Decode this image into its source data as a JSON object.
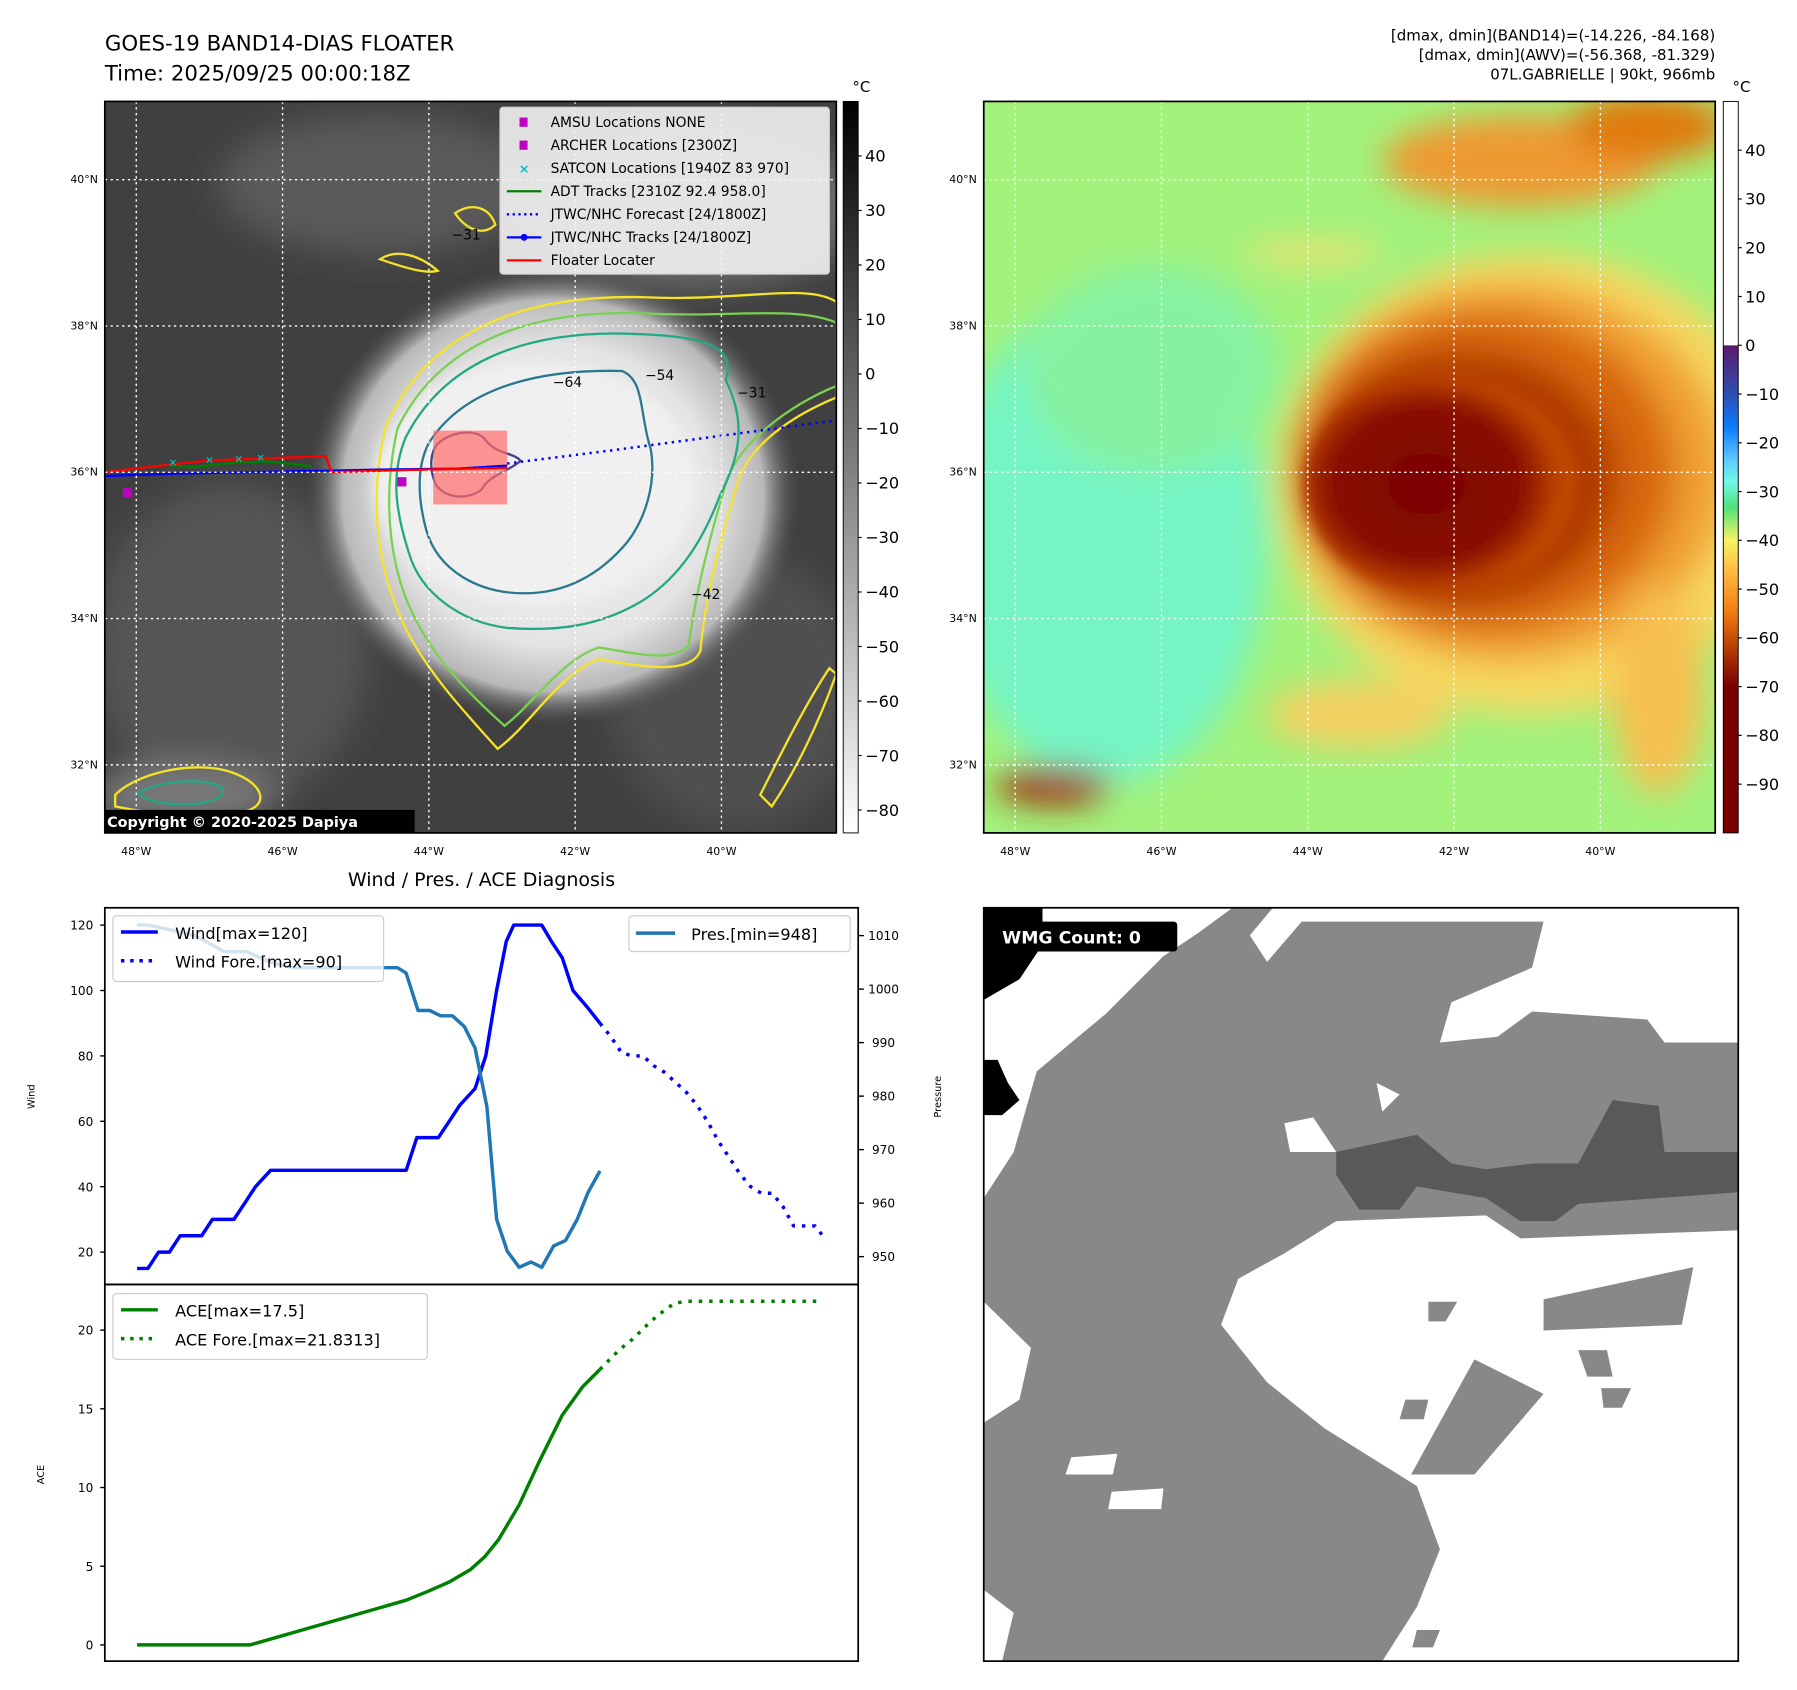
{
  "header": {
    "title": "GOES-19 BAND14-DIAS FLOATER",
    "time": "Time: 2025/09/25 00:00:18Z",
    "stats": [
      "[dmax, dmin](BAND14)=(-14.226, -84.168)",
      "[dmax, dmin](AWV)=(-56.368, -81.329)",
      "07L.GABRIELLE | 90kt, 966mb"
    ]
  },
  "maps": {
    "lat_ticks": [
      {
        "v": 40,
        "label": "40°N"
      },
      {
        "v": 38,
        "label": "38°N"
      },
      {
        "v": 36,
        "label": "36°N"
      },
      {
        "v": 34,
        "label": "34°N"
      },
      {
        "v": 32,
        "label": "32°N"
      }
    ],
    "lon_ticks": [
      {
        "v": -48,
        "label": "48°W"
      },
      {
        "v": -46,
        "label": "46°W"
      },
      {
        "v": -44,
        "label": "44°W"
      },
      {
        "v": -42,
        "label": "42°W"
      },
      {
        "v": -40,
        "label": "40°W"
      }
    ],
    "lon_range": [
      -48.43,
      -38.43
    ],
    "lat_range": [
      31.07,
      41.07
    ]
  },
  "map_left": {
    "legend": [
      {
        "label": "AMSU Locations NONE",
        "symbol": "square",
        "color": "#c000c0"
      },
      {
        "label": "ARCHER Locations [2300Z]",
        "symbol": "square",
        "color": "#c000c0"
      },
      {
        "label": "SATCON Locations [1940Z 83 970]",
        "symbol": "x",
        "color": "#00bfbf"
      },
      {
        "label": "ADT Tracks [2310Z 92.4 958.0]",
        "symbol": "line",
        "color": "#008000"
      },
      {
        "label": "JTWC/NHC Forecast [24/1800Z]",
        "symbol": "dotted",
        "color": "#0000ff"
      },
      {
        "label": "JTWC/NHC Tracks [24/1800Z]",
        "symbol": "line-dot",
        "color": "#0000ff"
      },
      {
        "label": "Floater Locater",
        "symbol": "line",
        "color": "#ff0000"
      }
    ],
    "contour_labels": [
      "−31",
      "−42",
      "−54",
      "−64"
    ],
    "copyright": "Copyright © 2020-2025 Dapiya",
    "colorbar": {
      "unit": "°C",
      "range": [
        -84.2,
        50
      ],
      "ticks": [
        40,
        30,
        20,
        10,
        0,
        -10,
        -20,
        -30,
        -40,
        -50,
        -60,
        -70,
        -80
      ]
    },
    "floater_box": {
      "lon": [
        -43.94,
        -42.93
      ],
      "lat": [
        35.56,
        36.57
      ]
    },
    "tracks": {
      "floater": [
        [
          -48.43,
          36.0
        ],
        [
          -47.77,
          36.08
        ],
        [
          -47.03,
          36.16
        ],
        [
          -46.24,
          36.19
        ],
        [
          -45.41,
          36.22
        ],
        [
          -45.33,
          36.0
        ],
        [
          -44.35,
          36.03
        ],
        [
          -42.93,
          36.06
        ]
      ],
      "jtwc": [
        [
          -48.43,
          35.95
        ],
        [
          -47.5,
          35.98
        ],
        [
          -46.5,
          36.0
        ],
        [
          -45.5,
          36.02
        ],
        [
          -44.5,
          36.04
        ],
        [
          -43.6,
          36.05
        ],
        [
          -42.93,
          36.09
        ]
      ],
      "forecast": [
        [
          -42.93,
          36.12
        ],
        [
          -41.5,
          36.3
        ],
        [
          -40,
          36.5
        ],
        [
          -38.43,
          36.71
        ]
      ],
      "adt": [
        [
          -48.43,
          36.0
        ],
        [
          -48.0,
          36.05
        ],
        [
          -47.6,
          36.1
        ],
        [
          -47.2,
          36.07
        ],
        [
          -46.8,
          36.12
        ],
        [
          -46.2,
          36.15
        ],
        [
          -45.6,
          36.08
        ]
      ],
      "archer": [
        [
          -48.12,
          35.72
        ],
        [
          -44.37,
          35.87
        ]
      ],
      "satcon": [
        [
          -47.5,
          36.13
        ],
        [
          -47.0,
          36.17
        ],
        [
          -46.6,
          36.18
        ],
        [
          -46.3,
          36.2
        ]
      ]
    }
  },
  "map_right": {
    "colorbar": {
      "unit": "°C",
      "range": [
        -100,
        50
      ],
      "ticks": [
        40,
        30,
        20,
        10,
        0,
        -10,
        -20,
        -30,
        -40,
        -50,
        -60,
        -70,
        -80,
        -90
      ]
    }
  },
  "wmg": {
    "label": "WMG Count: 0"
  },
  "chart_data": [
    {
      "type": "line",
      "title": "Wind / Pres. / ACE Diagnosis",
      "xlabel": "",
      "ylabel": "Wind",
      "ylabel_right": "Pressure",
      "xlim": [
        -3,
        67
      ],
      "ylim": [
        10.1,
        125.3
      ],
      "ylim_right": [
        944.8,
        1015.2
      ],
      "yticks": [
        20,
        40,
        60,
        80,
        100,
        120
      ],
      "yticks_right": [
        950,
        960,
        970,
        980,
        990,
        1000,
        1010
      ],
      "grid": false,
      "series": [
        {
          "name": "Wind[max=120]",
          "axis": "left",
          "color": "#0000ff",
          "style": "solid",
          "legend": "upper-left",
          "points": [
            [
              0,
              15
            ],
            [
              1,
              15
            ],
            [
              2,
              20
            ],
            [
              3,
              20
            ],
            [
              4,
              25
            ],
            [
              5,
              25
            ],
            [
              6,
              25
            ],
            [
              7,
              30
            ],
            [
              8,
              30
            ],
            [
              9,
              30
            ],
            [
              10,
              35
            ],
            [
              11,
              40
            ],
            [
              12.4,
              45
            ],
            [
              25,
              45
            ],
            [
              26,
              55
            ],
            [
              28,
              55
            ],
            [
              29,
              60
            ],
            [
              30,
              65
            ],
            [
              31.4,
              70
            ],
            [
              32.4,
              80
            ],
            [
              33.4,
              100
            ],
            [
              34.3,
              115
            ],
            [
              35,
              120
            ],
            [
              37.6,
              120
            ],
            [
              38.5,
              115
            ],
            [
              39.5,
              110
            ],
            [
              40.5,
              100
            ],
            [
              41.8,
              95
            ],
            [
              43,
              90
            ]
          ]
        },
        {
          "name": "Wind Fore.[max=90]",
          "axis": "left",
          "color": "#0000ff",
          "style": "dotted",
          "legend": "upper-left",
          "points": [
            [
              43,
              90
            ],
            [
              44,
              86
            ],
            [
              45,
              81
            ],
            [
              46,
              80
            ],
            [
              47,
              80
            ],
            [
              48,
              77
            ],
            [
              49,
              75
            ],
            [
              50,
              72
            ],
            [
              51,
              69
            ],
            [
              52,
              65
            ],
            [
              53,
              60
            ],
            [
              54,
              54
            ],
            [
              55,
              49
            ],
            [
              56,
              44
            ],
            [
              57,
              40
            ],
            [
              58,
              38
            ],
            [
              59,
              38
            ],
            [
              60,
              34
            ],
            [
              61,
              28
            ],
            [
              62,
              28
            ],
            [
              63,
              28
            ],
            [
              63.7,
              25
            ]
          ]
        },
        {
          "name": "Pres.[min=948]",
          "axis": "right",
          "color": "#1f77b4",
          "style": "solid",
          "legend": "upper-right",
          "points": [
            [
              0,
              1012
            ],
            [
              1,
              1012
            ],
            [
              3.2,
              1011
            ],
            [
              5.4,
              1010
            ],
            [
              8.1,
              1007
            ],
            [
              10.2,
              1007
            ],
            [
              12.4,
              1005
            ],
            [
              14.5,
              1004
            ],
            [
              24.2,
              1004
            ],
            [
              25,
              1003
            ],
            [
              26.1,
              996
            ],
            [
              27.2,
              996
            ],
            [
              28.2,
              995
            ],
            [
              29.3,
              995
            ],
            [
              30.4,
              993
            ],
            [
              31.4,
              989
            ],
            [
              32.5,
              978
            ],
            [
              33.4,
              957
            ],
            [
              34.4,
              951
            ],
            [
              35.5,
              948
            ],
            [
              36.6,
              949
            ],
            [
              37.6,
              948
            ],
            [
              38.7,
              952
            ],
            [
              39.8,
              953
            ],
            [
              40.9,
              957
            ],
            [
              41.9,
              962
            ],
            [
              43,
              966
            ]
          ]
        }
      ]
    },
    {
      "type": "line",
      "title": "",
      "xlabel": "",
      "ylabel": "ACE",
      "xlim": [
        -3,
        67
      ],
      "ylim": [
        -1.03,
        22.9
      ],
      "yticks": [
        0,
        5,
        10,
        15,
        20
      ],
      "grid": false,
      "series": [
        {
          "name": "ACE[max=17.5]",
          "color": "#008000",
          "style": "solid",
          "legend": "upper-left",
          "points": [
            [
              0,
              0
            ],
            [
              10.5,
              0
            ],
            [
              25,
              2.84
            ],
            [
              27,
              3.4
            ],
            [
              29,
              4.0
            ],
            [
              31,
              4.8
            ],
            [
              32.3,
              5.6
            ],
            [
              33.6,
              6.7
            ],
            [
              35.5,
              8.9
            ],
            [
              37.4,
              11.7
            ],
            [
              39.5,
              14.6
            ],
            [
              41.4,
              16.4
            ],
            [
              43,
              17.5
            ]
          ]
        },
        {
          "name": "ACE Fore.[max=21.8313]",
          "color": "#008000",
          "style": "dotted",
          "legend": "upper-left",
          "points": [
            [
              43,
              17.5
            ],
            [
              44,
              18.2
            ],
            [
              44.9,
              18.8
            ],
            [
              46,
              19.4
            ],
            [
              46.9,
              20
            ],
            [
              47.8,
              20.6
            ],
            [
              48.9,
              21.2
            ],
            [
              49.9,
              21.7
            ],
            [
              51,
              21.83
            ],
            [
              63.7,
              21.83
            ]
          ]
        }
      ]
    }
  ]
}
